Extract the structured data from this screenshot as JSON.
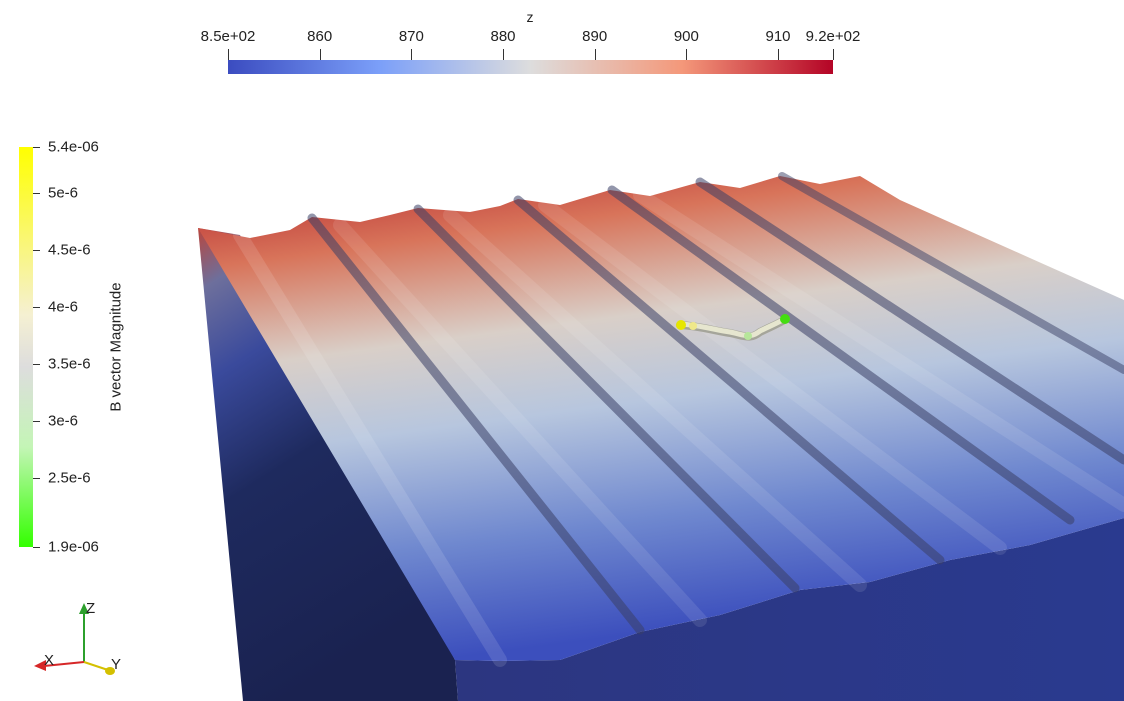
{
  "z_colorbar": {
    "title": "z",
    "ticks": [
      {
        "label": "8.5e+02",
        "value": 850
      },
      {
        "label": "860",
        "value": 860
      },
      {
        "label": "870",
        "value": 870
      },
      {
        "label": "880",
        "value": 880
      },
      {
        "label": "890",
        "value": 890
      },
      {
        "label": "900",
        "value": 900
      },
      {
        "label": "910",
        "value": 910
      },
      {
        "label": "9.2e+02",
        "value": 916
      }
    ],
    "range": [
      850,
      916
    ],
    "colors": [
      "#3b4cc0",
      "#dddddd",
      "#b40426"
    ]
  },
  "b_colorbar": {
    "title": "B vector Magnitude",
    "ticks": [
      {
        "label": "5.4e-06",
        "value": 5.4
      },
      {
        "label": "5e-6",
        "value": 5.0
      },
      {
        "label": "4.5e-6",
        "value": 4.5
      },
      {
        "label": "4e-6",
        "value": 4.0
      },
      {
        "label": "3.5e-6",
        "value": 3.5
      },
      {
        "label": "3e-6",
        "value": 3.0
      },
      {
        "label": "2.5e-6",
        "value": 2.5
      },
      {
        "label": "1.9e-06",
        "value": 1.9
      }
    ],
    "range": [
      1.9,
      5.4
    ],
    "colors": [
      "#ffff00",
      "#ffffff",
      "#33ff00"
    ]
  },
  "axes_triad": {
    "x_label": "X",
    "y_label": "Y",
    "z_label": "Z",
    "x_color": "#d62728",
    "y_color": "#d4c000",
    "z_color": "#2ca02c"
  }
}
